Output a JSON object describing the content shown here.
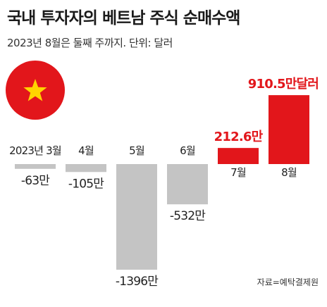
{
  "title": "국내 투자자의 베트남 주식 순매수액",
  "subtitle": "2023년 8월은 둘째 주까지. 단위: 달러",
  "source": "자료=예탁결제원",
  "colors": {
    "positive": "#e2161b",
    "negative": "#c4c4c4",
    "positive_label": "#e2161b",
    "negative_label": "#222222"
  },
  "chart_data": {
    "type": "bar",
    "categories": [
      "2023년 3월",
      "4월",
      "5월",
      "6월",
      "7월",
      "8월"
    ],
    "values": [
      -63,
      -105,
      -1396,
      -532,
      212.6,
      910.5
    ],
    "value_labels": [
      "-63만",
      "-105만",
      "-1396만",
      "-532만",
      "212.6만",
      "910.5만달러"
    ],
    "title": "국내 투자자의 베트남 주식 순매수액",
    "xlabel": "",
    "ylabel": "",
    "unit": "만 달러",
    "ylim": [
      -1400,
      920
    ],
    "grid": false,
    "legend": "none"
  }
}
